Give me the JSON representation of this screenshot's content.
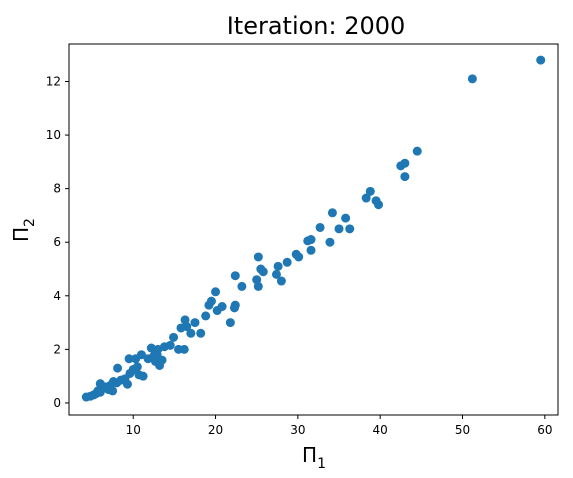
{
  "chart_data": {
    "type": "scatter",
    "title": "Iteration: 2000",
    "xlabel": "Π",
    "xlabel_sub": "1",
    "ylabel": "Π",
    "ylabel_sub": "2",
    "xlim": [
      2.2,
      61.6
    ],
    "ylim": [
      -0.45,
      13.4
    ],
    "xticks": [
      10,
      20,
      30,
      40,
      50,
      60
    ],
    "yticks": [
      0,
      2,
      4,
      6,
      8,
      10,
      12
    ],
    "marker_color": "#1f77b4",
    "grid": false,
    "legend": "none",
    "points": [
      [
        4.3,
        0.22
      ],
      [
        4.8,
        0.25
      ],
      [
        5.2,
        0.3
      ],
      [
        5.5,
        0.35
      ],
      [
        5.7,
        0.45
      ],
      [
        6.0,
        0.4
      ],
      [
        6.3,
        0.55
      ],
      [
        6.0,
        0.72
      ],
      [
        6.6,
        0.6
      ],
      [
        7.0,
        0.5
      ],
      [
        7.2,
        0.65
      ],
      [
        7.6,
        0.8
      ],
      [
        7.5,
        0.45
      ],
      [
        8.0,
        0.75
      ],
      [
        8.1,
        1.3
      ],
      [
        8.5,
        0.85
      ],
      [
        9.0,
        0.9
      ],
      [
        9.3,
        0.7
      ],
      [
        9.6,
        1.1
      ],
      [
        9.5,
        1.65
      ],
      [
        10.0,
        1.25
      ],
      [
        10.3,
        1.65
      ],
      [
        10.5,
        1.35
      ],
      [
        10.7,
        1.05
      ],
      [
        11.0,
        1.8
      ],
      [
        11.2,
        1.0
      ],
      [
        11.8,
        1.65
      ],
      [
        12.2,
        2.05
      ],
      [
        12.5,
        1.75
      ],
      [
        12.7,
        1.55
      ],
      [
        12.9,
        1.8
      ],
      [
        13.0,
        2.0
      ],
      [
        13.2,
        1.4
      ],
      [
        13.5,
        1.6
      ],
      [
        13.8,
        2.1
      ],
      [
        14.5,
        2.15
      ],
      [
        14.9,
        2.45
      ],
      [
        15.5,
        2.0
      ],
      [
        15.8,
        2.8
      ],
      [
        16.2,
        2.0
      ],
      [
        16.3,
        3.1
      ],
      [
        16.5,
        2.85
      ],
      [
        17.0,
        2.6
      ],
      [
        17.5,
        3.0
      ],
      [
        18.2,
        2.6
      ],
      [
        18.8,
        3.25
      ],
      [
        19.2,
        3.65
      ],
      [
        19.5,
        3.8
      ],
      [
        20.0,
        4.15
      ],
      [
        20.2,
        3.45
      ],
      [
        20.8,
        3.6
      ],
      [
        21.8,
        3.0
      ],
      [
        22.3,
        3.55
      ],
      [
        22.4,
        3.65
      ],
      [
        22.4,
        4.75
      ],
      [
        23.2,
        4.35
      ],
      [
        25.0,
        4.6
      ],
      [
        25.2,
        4.35
      ],
      [
        25.2,
        5.45
      ],
      [
        25.5,
        5.0
      ],
      [
        25.8,
        4.9
      ],
      [
        27.4,
        4.8
      ],
      [
        27.6,
        5.1
      ],
      [
        28.0,
        4.55
      ],
      [
        28.7,
        5.25
      ],
      [
        29.8,
        5.55
      ],
      [
        30.1,
        5.45
      ],
      [
        31.2,
        6.05
      ],
      [
        31.6,
        6.1
      ],
      [
        31.6,
        5.7
      ],
      [
        32.7,
        6.55
      ],
      [
        33.9,
        6.0
      ],
      [
        34.2,
        7.1
      ],
      [
        35.0,
        6.5
      ],
      [
        35.8,
        6.9
      ],
      [
        36.3,
        6.5
      ],
      [
        38.3,
        7.65
      ],
      [
        38.8,
        7.9
      ],
      [
        39.5,
        7.55
      ],
      [
        39.8,
        7.4
      ],
      [
        42.5,
        8.85
      ],
      [
        43.0,
        8.95
      ],
      [
        43.0,
        8.45
      ],
      [
        44.5,
        9.4
      ],
      [
        51.2,
        12.1
      ],
      [
        59.5,
        12.8
      ]
    ]
  }
}
